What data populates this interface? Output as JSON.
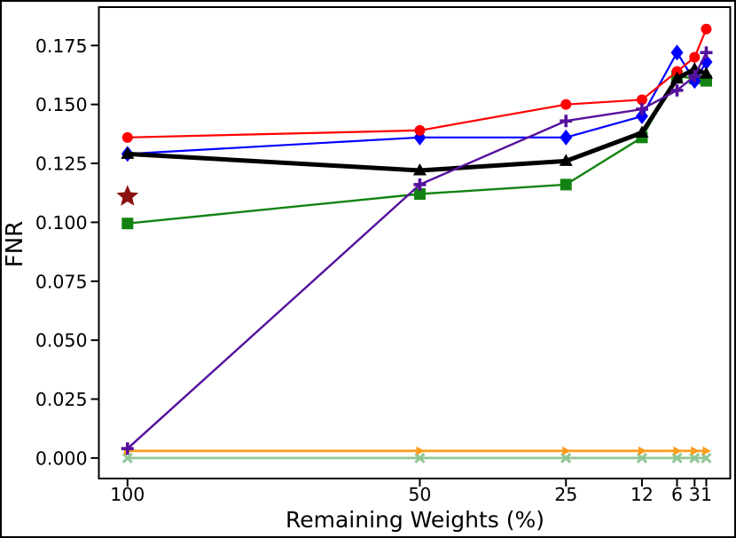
{
  "chart_data": {
    "type": "line",
    "title": "",
    "xlabel": "Remaining Weights (%)",
    "ylabel": "FNR",
    "grid": false,
    "legend": null,
    "x_axis": {
      "scale": "linear-reversed",
      "lim": [
        104.9,
        -3.1
      ],
      "ticks": [
        100,
        50,
        25,
        12,
        6,
        3,
        1
      ],
      "tick_labels": [
        "100",
        "50",
        "25",
        "12",
        "6",
        "3",
        "1"
      ]
    },
    "y_axis": {
      "lim": [
        -0.0087,
        0.1913
      ],
      "ticks": [
        0.0,
        0.025,
        0.05,
        0.075,
        0.1,
        0.125,
        0.15,
        0.175
      ],
      "tick_labels": [
        "0.000",
        "0.025",
        "0.050",
        "0.075",
        "0.100",
        "0.125",
        "0.150",
        "0.175"
      ]
    },
    "x": [
      100,
      50,
      25,
      12,
      6,
      3,
      1
    ],
    "series": [
      {
        "name": "pale-green-x",
        "color": "#90c695",
        "marker": "x",
        "line_width": 2.8,
        "values": [
          0.0,
          0.0,
          0.0,
          0.0,
          0.0,
          0.0,
          0.0
        ]
      },
      {
        "name": "orange-right-arrows",
        "color": "#fb9c1c",
        "marker": "triangle-right",
        "line_width": 2.8,
        "values": [
          0.003,
          0.003,
          0.003,
          0.003,
          0.003,
          0.003,
          0.003
        ]
      },
      {
        "name": "green-squares",
        "color": "#128312",
        "marker": "square",
        "line_width": 2.4,
        "values": [
          0.0995,
          0.112,
          0.116,
          0.136,
          0.162,
          0.161,
          0.16
        ]
      },
      {
        "name": "blue-diamonds",
        "color": "#0000ff",
        "marker": "diamond",
        "line_width": 2.2,
        "values": [
          0.129,
          0.136,
          0.136,
          0.145,
          0.172,
          0.16,
          0.168
        ]
      },
      {
        "name": "red-circles",
        "color": "#ff0000",
        "marker": "circle",
        "line_width": 2.2,
        "values": [
          0.136,
          0.139,
          0.15,
          0.152,
          0.164,
          0.17,
          0.182
        ]
      },
      {
        "name": "black-triangles",
        "color": "#000000",
        "marker": "triangle-up",
        "line_width": 5,
        "values": [
          0.129,
          0.122,
          0.126,
          0.138,
          0.161,
          0.165,
          0.163
        ]
      },
      {
        "name": "dark-purple-plus",
        "color": "#56109e",
        "marker": "plus",
        "line_width": 2.4,
        "values": [
          0.004,
          0.116,
          0.143,
          0.148,
          0.156,
          0.162,
          0.172
        ]
      }
    ],
    "extra_points": [
      {
        "name": "dark-red-star",
        "color": "#8b0f0f",
        "marker": "star",
        "x": 100,
        "y": 0.111
      }
    ]
  }
}
